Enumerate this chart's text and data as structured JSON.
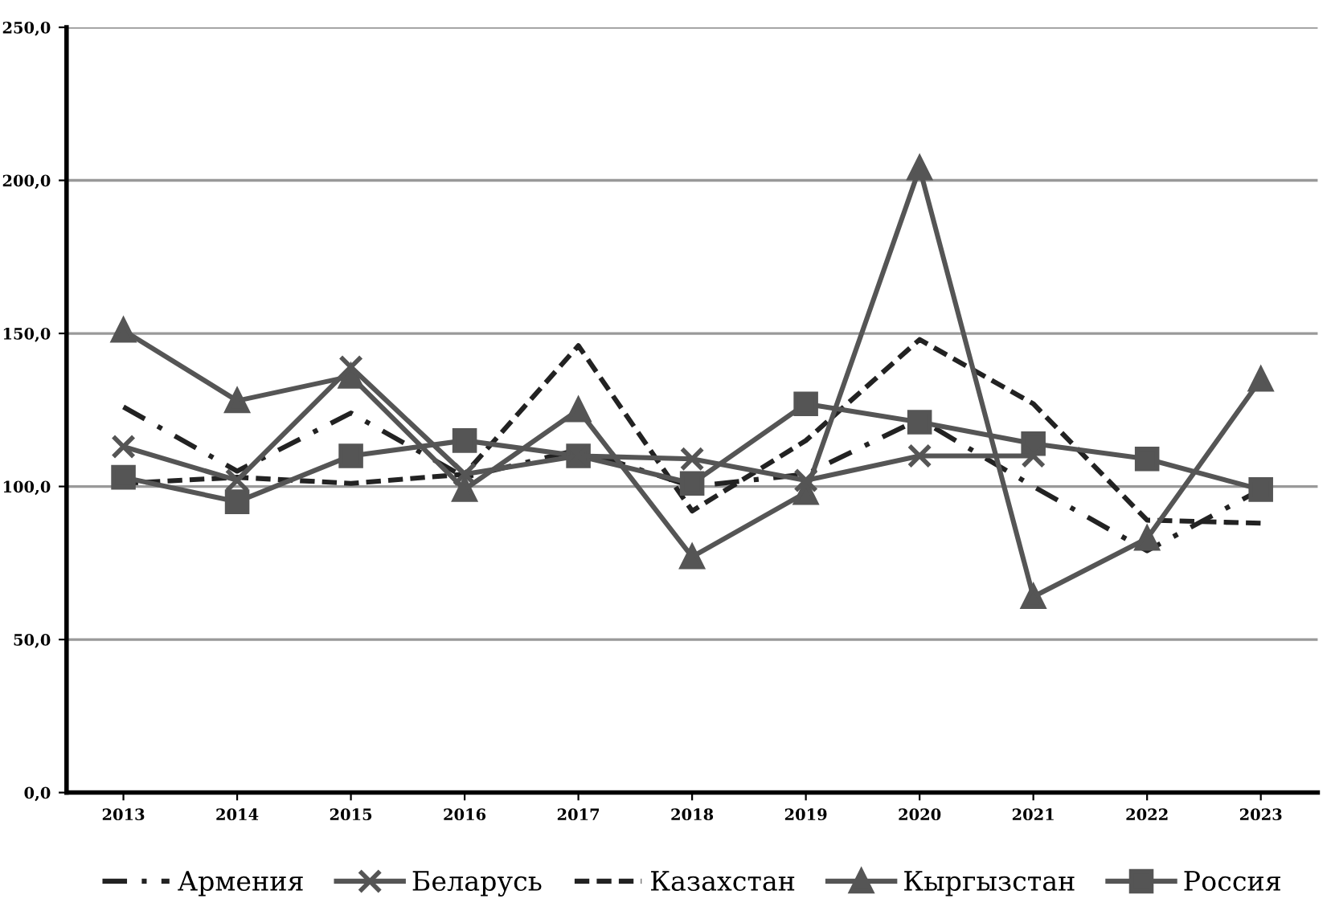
{
  "chart_data": {
    "type": "line",
    "categories": [
      "2013",
      "2014",
      "2015",
      "2016",
      "2017",
      "2018",
      "2019",
      "2020",
      "2021",
      "2022",
      "2023"
    ],
    "series": [
      {
        "name": "Армения",
        "color": "#222222",
        "line_style": "dashdot",
        "marker": "none",
        "values": [
          126,
          105,
          124,
          103,
          112,
          100,
          104,
          122,
          100,
          79,
          99
        ]
      },
      {
        "name": "Беларусь",
        "color": "#555555",
        "line_style": "solid",
        "marker": "cross",
        "values": [
          113,
          102,
          139,
          104,
          110,
          109,
          102,
          110,
          110,
          null,
          null
        ]
      },
      {
        "name": "Казахстан",
        "color": "#222222",
        "line_style": "dashed",
        "marker": "none",
        "values": [
          101,
          103,
          101,
          104,
          146,
          92,
          115,
          148,
          127,
          89,
          88
        ]
      },
      {
        "name": "Кыргызстан",
        "color": "#555555",
        "line_style": "solid",
        "marker": "triangle",
        "values": [
          151,
          128,
          136,
          99,
          125,
          77,
          98,
          204,
          64,
          83,
          135
        ]
      },
      {
        "name": "Россия",
        "color": "#555555",
        "line_style": "solid",
        "marker": "square",
        "values": [
          103,
          95,
          110,
          115,
          110,
          101,
          127,
          121,
          114,
          109,
          99
        ]
      }
    ],
    "ylim": [
      0,
      250
    ],
    "yticks": [
      {
        "value": 0,
        "label": "0,0"
      },
      {
        "value": 50,
        "label": "50,0"
      },
      {
        "value": 100,
        "label": "100,0"
      },
      {
        "value": 150,
        "label": "150,0"
      },
      {
        "value": 200,
        "label": "200,0"
      },
      {
        "value": 250,
        "label": "250,0"
      }
    ],
    "grid": "y",
    "legend": "bottom"
  }
}
